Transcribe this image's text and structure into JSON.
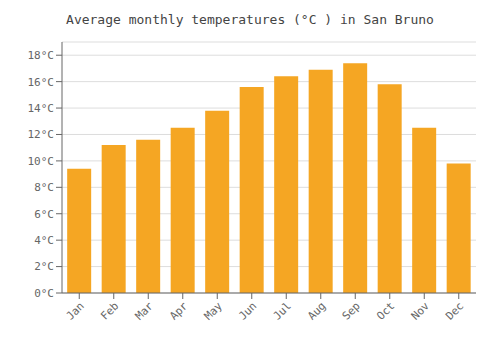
{
  "chart_data": {
    "type": "bar",
    "title": "Average monthly temperatures (°C ) in San Bruno",
    "categories": [
      "Jan",
      "Feb",
      "Mar",
      "Apr",
      "May",
      "Jun",
      "Jul",
      "Aug",
      "Sep",
      "Oct",
      "Nov",
      "Dec"
    ],
    "values": [
      9.4,
      11.2,
      11.6,
      12.5,
      13.8,
      15.6,
      16.4,
      16.9,
      17.4,
      15.8,
      12.5,
      9.8
    ],
    "color": "#F5A623",
    "ylim": [
      0,
      19
    ],
    "yticks": [
      {
        "value": 0,
        "label": "0°C"
      },
      {
        "value": 2,
        "label": "2°C"
      },
      {
        "value": 4,
        "label": "4°C"
      },
      {
        "value": 6,
        "label": "6°C"
      },
      {
        "value": 8,
        "label": "8°C"
      },
      {
        "value": 10,
        "label": "10°C"
      },
      {
        "value": 12,
        "label": "12°C"
      },
      {
        "value": 14,
        "label": "14°C"
      },
      {
        "value": 16,
        "label": "16°C"
      },
      {
        "value": 18,
        "label": "18°C"
      }
    ],
    "grid": true
  }
}
